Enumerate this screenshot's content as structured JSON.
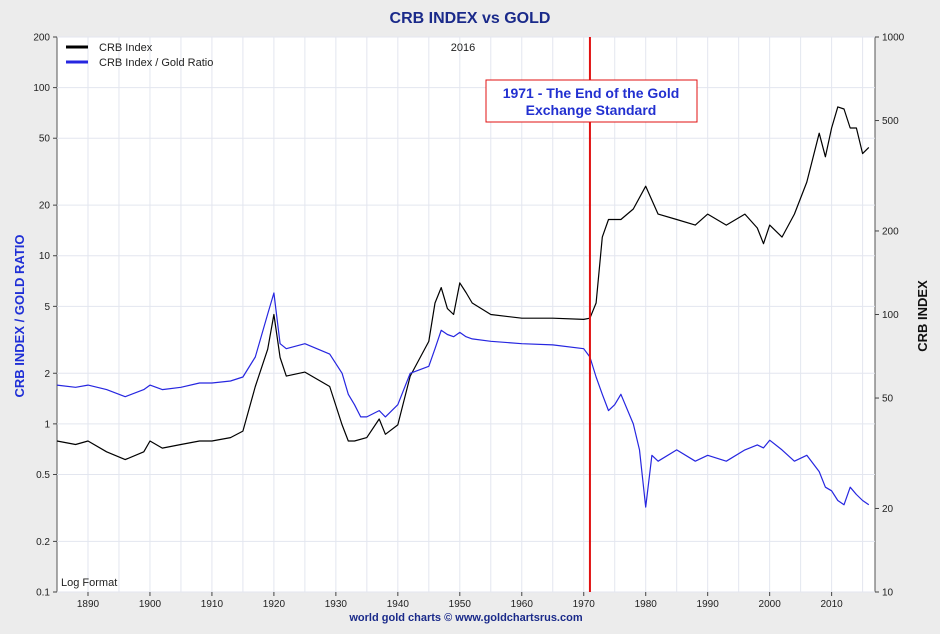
{
  "chart_data": {
    "type": "line",
    "title": "CRB INDEX vs GOLD",
    "subtitle": "2016",
    "ylabel_left": "CRB INDEX / GOLD RATIO",
    "ylabel_right": "CRB INDEX",
    "source": "world gold charts © www.goldchartsrus.com",
    "scale_note": "Log Format",
    "annotation": {
      "lines": [
        "1971 - The End of the Gold",
        "Exchange Standard"
      ],
      "x": 1971
    },
    "grid": true,
    "legend_position": "top-left",
    "log_scale": true,
    "xlim": [
      1885,
      2017
    ],
    "x_ticks": [
      1890,
      1900,
      1910,
      1920,
      1930,
      1940,
      1950,
      1960,
      1970,
      1980,
      1990,
      2000,
      2010
    ],
    "y_left_lim": [
      0.1,
      200
    ],
    "y_left_ticks": [
      "0.1",
      "0.2",
      "0.5",
      "1",
      "2",
      "5",
      "10",
      "20",
      "50",
      "100",
      "200"
    ],
    "y_right_lim": [
      10,
      1000
    ],
    "y_right_ticks": [
      "10",
      "20",
      "50",
      "100",
      "200",
      "500",
      "1000"
    ],
    "series": [
      {
        "name": "CRB Index",
        "axis": "right",
        "color": "#000000",
        "x": [
          1885,
          1888,
          1890,
          1893,
          1896,
          1899,
          1900,
          1902,
          1905,
          1908,
          1910,
          1913,
          1915,
          1917,
          1919,
          1920,
          1921,
          1922,
          1925,
          1929,
          1931,
          1932,
          1933,
          1935,
          1937,
          1938,
          1940,
          1942,
          1945,
          1946,
          1947,
          1948,
          1949,
          1950,
          1951,
          1952,
          1955,
          1960,
          1965,
          1970,
          1971,
          1972,
          1973,
          1974,
          1976,
          1978,
          1980,
          1982,
          1985,
          1988,
          1990,
          1993,
          1996,
          1998,
          1999,
          2000,
          2002,
          2004,
          2006,
          2008,
          2009,
          2010,
          2011,
          2012,
          2013,
          2014,
          2015,
          2016
        ],
        "y": [
          35,
          34,
          35,
          32,
          30,
          32,
          35,
          33,
          34,
          35,
          35,
          36,
          38,
          55,
          75,
          100,
          70,
          60,
          62,
          55,
          40,
          35,
          35,
          36,
          42,
          37,
          40,
          60,
          80,
          110,
          125,
          105,
          100,
          130,
          120,
          110,
          100,
          97,
          97,
          96,
          97,
          110,
          190,
          220,
          220,
          240,
          290,
          230,
          220,
          210,
          230,
          210,
          230,
          205,
          180,
          210,
          190,
          230,
          300,
          450,
          370,
          470,
          560,
          550,
          470,
          470,
          380,
          400
        ]
      },
      {
        "name": "CRB Index / Gold Ratio",
        "axis": "left",
        "color": "#2626e0",
        "x": [
          1885,
          1888,
          1890,
          1893,
          1896,
          1899,
          1900,
          1902,
          1905,
          1908,
          1910,
          1913,
          1915,
          1917,
          1919,
          1920,
          1921,
          1922,
          1925,
          1929,
          1931,
          1932,
          1933,
          1934,
          1935,
          1937,
          1938,
          1940,
          1942,
          1945,
          1946,
          1947,
          1948,
          1949,
          1950,
          1951,
          1952,
          1955,
          1960,
          1965,
          1970,
          1971,
          1972,
          1973,
          1974,
          1975,
          1976,
          1978,
          1979,
          1980,
          1981,
          1982,
          1985,
          1988,
          1990,
          1993,
          1996,
          1998,
          1999,
          2000,
          2002,
          2004,
          2006,
          2008,
          2009,
          2010,
          2011,
          2012,
          2013,
          2014,
          2015,
          2016
        ],
        "y": [
          1.7,
          1.65,
          1.7,
          1.6,
          1.45,
          1.6,
          1.7,
          1.6,
          1.65,
          1.75,
          1.75,
          1.8,
          1.9,
          2.5,
          4.5,
          6.0,
          3.0,
          2.8,
          3.0,
          2.6,
          2.0,
          1.5,
          1.3,
          1.1,
          1.1,
          1.2,
          1.1,
          1.3,
          2.0,
          2.2,
          2.8,
          3.6,
          3.4,
          3.3,
          3.5,
          3.3,
          3.2,
          3.1,
          3.0,
          2.95,
          2.8,
          2.5,
          1.9,
          1.5,
          1.2,
          1.3,
          1.5,
          1.0,
          0.7,
          0.32,
          0.65,
          0.6,
          0.7,
          0.6,
          0.65,
          0.6,
          0.7,
          0.75,
          0.72,
          0.8,
          0.7,
          0.6,
          0.65,
          0.52,
          0.42,
          0.4,
          0.35,
          0.33,
          0.42,
          0.38,
          0.35,
          0.33
        ]
      }
    ]
  }
}
